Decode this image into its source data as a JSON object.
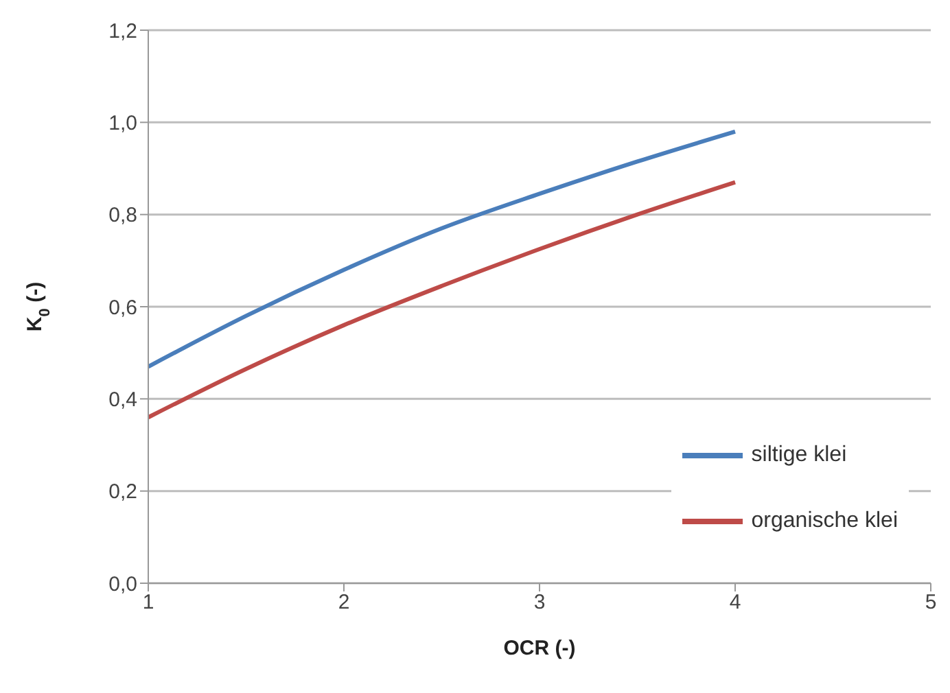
{
  "chart_data": {
    "type": "line",
    "xlabel": "OCR (-)",
    "ylabel": "K$_{0}$ (-)",
    "x": [
      1,
      1.5,
      2,
      2.5,
      3,
      3.5,
      4
    ],
    "series": [
      {
        "name": "siltige klei",
        "color": "#4a7ebb",
        "values": [
          0.47,
          0.58,
          0.68,
          0.77,
          0.845,
          0.915,
          0.98
        ]
      },
      {
        "name": "organische klei",
        "color": "#be4b48",
        "values": [
          0.36,
          0.465,
          0.56,
          0.645,
          0.725,
          0.8,
          0.87
        ]
      }
    ],
    "xlim": [
      1,
      5
    ],
    "xticks": [
      1,
      2,
      3,
      4,
      5
    ],
    "ylim": [
      0,
      1.2
    ],
    "yticks": [
      {
        "value": 0,
        "label": "0,0"
      },
      {
        "value": 0.2,
        "label": "0,2"
      },
      {
        "value": 0.4,
        "label": "0,4"
      },
      {
        "value": 0.6,
        "label": "0,6"
      },
      {
        "value": 0.8,
        "label": "0,8"
      },
      {
        "value": 1,
        "label": "1,0"
      },
      {
        "value": 1.2,
        "label": "1,2"
      }
    ],
    "grid": "y",
    "legend": "bottom right",
    "marker": "none",
    "line_style": "solid"
  }
}
